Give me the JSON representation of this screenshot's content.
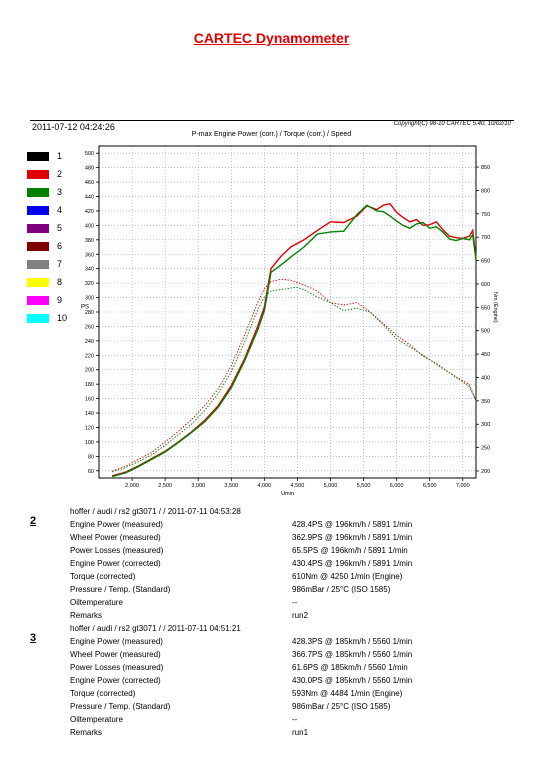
{
  "page": {
    "title": "CARTEC Dynamometer",
    "datetime": "2011-07-12 04:24:26",
    "copyright": "Copyright(C) 98-10 CARTEC 5.40, 10/02/10",
    "chart_title": "P-max Engine Power (corr.) / Torque (corr.) / Speed"
  },
  "legend": [
    {
      "label": "1",
      "color": "#000000"
    },
    {
      "label": "2",
      "color": "#e00000"
    },
    {
      "label": "3",
      "color": "#008000"
    },
    {
      "label": "4",
      "color": "#0000ee"
    },
    {
      "label": "5",
      "color": "#800080"
    },
    {
      "label": "6",
      "color": "#800000"
    },
    {
      "label": "7",
      "color": "#808080"
    },
    {
      "label": "8",
      "color": "#ffff00"
    },
    {
      "label": "9",
      "color": "#ff00ff"
    },
    {
      "label": "10",
      "color": "#00ffff"
    }
  ],
  "chart_data": {
    "type": "line",
    "title": "P-max Engine Power (corr.) / Torque (corr.) / Speed",
    "xlabel": "Umin",
    "ylabel": "PS",
    "y2label": "Nm (Engine)",
    "xlim": [
      1500,
      7200
    ],
    "ylim": [
      50,
      510
    ],
    "y2lim": [
      185,
      895
    ],
    "x_ticks": [
      "2,000",
      "2,500",
      "3,000",
      "3,500",
      "4,000",
      "4,500",
      "5,000",
      "5,500",
      "6,000",
      "6,500",
      "7,000"
    ],
    "x_tick_values": [
      2000,
      2500,
      3000,
      3500,
      4000,
      4500,
      5000,
      5500,
      6000,
      6500,
      7000
    ],
    "y_ticks": [
      60,
      80,
      100,
      120,
      140,
      160,
      180,
      200,
      220,
      240,
      260,
      280,
      300,
      320,
      340,
      360,
      380,
      400,
      420,
      440,
      460,
      480,
      500
    ],
    "y2_ticks": [
      200,
      250,
      300,
      350,
      400,
      450,
      500,
      550,
      600,
      650,
      700,
      750,
      800,
      850
    ],
    "grid": true,
    "series": [
      {
        "name": "2",
        "kind": "power",
        "axis": "left",
        "color": "#e00000",
        "style": "solid",
        "x": [
          1700,
          1900,
          2100,
          2300,
          2500,
          2700,
          2900,
          3100,
          3300,
          3500,
          3700,
          3900,
          4000,
          4100,
          4250,
          4400,
          4600,
          4800,
          5000,
          5200,
          5400,
          5550,
          5700,
          5800,
          5900,
          6000,
          6100,
          6200,
          6300,
          6400,
          6500,
          6600,
          6700,
          6800,
          6900,
          7000,
          7100,
          7150,
          7200
        ],
        "y": [
          53,
          58,
          67,
          77,
          87,
          100,
          114,
          130,
          150,
          178,
          215,
          260,
          287,
          340,
          357,
          370,
          380,
          393,
          405,
          404,
          413,
          427,
          422,
          428,
          430,
          418,
          411,
          405,
          408,
          400,
          401,
          405,
          394,
          385,
          383,
          382,
          385,
          393,
          355
        ]
      },
      {
        "name": "3",
        "kind": "power",
        "axis": "left",
        "color": "#008000",
        "style": "solid",
        "x": [
          1700,
          1900,
          2100,
          2300,
          2500,
          2700,
          2900,
          3100,
          3300,
          3500,
          3700,
          3900,
          4000,
          4100,
          4250,
          4400,
          4600,
          4800,
          5000,
          5200,
          5400,
          5550,
          5700,
          5800,
          5900,
          6000,
          6100,
          6200,
          6300,
          6400,
          6500,
          6600,
          6700,
          6800,
          6900,
          7000,
          7100,
          7150,
          7200
        ],
        "y": [
          52,
          57,
          66,
          76,
          86,
          99,
          113,
          128,
          148,
          175,
          212,
          255,
          282,
          335,
          345,
          356,
          370,
          388,
          391,
          392,
          415,
          428,
          420,
          419,
          413,
          406,
          400,
          396,
          402,
          404,
          396,
          398,
          391,
          381,
          379,
          382,
          380,
          387,
          352
        ]
      },
      {
        "name": "2",
        "kind": "torque",
        "axis": "right",
        "color": "#e00000",
        "style": "dashed",
        "x": [
          1700,
          1900,
          2100,
          2300,
          2500,
          2700,
          2900,
          3100,
          3300,
          3500,
          3700,
          3900,
          4000,
          4100,
          4250,
          4400,
          4600,
          4800,
          5000,
          5200,
          5400,
          5600,
          5800,
          6000,
          6200,
          6400,
          6600,
          6800,
          7000,
          7100,
          7200
        ],
        "y": [
          200,
          210,
          225,
          240,
          262,
          285,
          310,
          340,
          375,
          425,
          490,
          560,
          590,
          605,
          610,
          608,
          598,
          585,
          560,
          555,
          560,
          540,
          515,
          490,
          470,
          445,
          430,
          410,
          393,
          385,
          350
        ]
      },
      {
        "name": "3",
        "kind": "torque",
        "axis": "right",
        "color": "#008000",
        "style": "dashed",
        "x": [
          1700,
          1900,
          2100,
          2300,
          2500,
          2700,
          2900,
          3100,
          3300,
          3500,
          3700,
          3900,
          4000,
          4100,
          4250,
          4484,
          4600,
          4800,
          5000,
          5200,
          5400,
          5600,
          5800,
          6000,
          6200,
          6400,
          6600,
          6800,
          7000,
          7100,
          7200
        ],
        "y": [
          198,
          207,
          220,
          235,
          255,
          278,
          300,
          330,
          365,
          412,
          475,
          545,
          572,
          585,
          588,
          593,
          588,
          572,
          560,
          543,
          548,
          540,
          512,
          483,
          465,
          448,
          428,
          410,
          390,
          380,
          350
        ]
      }
    ]
  },
  "runs": [
    {
      "number": "2",
      "header": "hoffer / audi / rs2 gt3071 /  / 2011-07-11 04:53:28",
      "rows": [
        {
          "label": "Engine Power (measured)",
          "value": "428.4PS @ 196km/h / 5891 1/min"
        },
        {
          "label": "Wheel Power (measured)",
          "value": "362.9PS @ 196km/h / 5891 1/min"
        },
        {
          "label": "Power Losses (measured)",
          "value": "65.5PS @ 196km/h / 5891 1/min"
        },
        {
          "label": "Engine Power (corrected)",
          "value": "430.4PS @ 196km/h / 5891 1/min"
        },
        {
          "label": "Torque (corrected)",
          "value": "610Nm @ 4250 1/min (Engine)"
        },
        {
          "label": "Pressure / Temp. (Standard)",
          "value": "986mBar / 25°C    (ISO 1585)"
        },
        {
          "label": "Oiltemperature",
          "value": "--"
        },
        {
          "label": "Remarks",
          "value": "run2"
        }
      ]
    },
    {
      "number": "3",
      "header": "hoffer / audi / rs2 gt3071 /  / 2011-07-11 04:51:21",
      "rows": [
        {
          "label": "Engine Power (measured)",
          "value": "428.3PS @ 185km/h / 5560 1/min"
        },
        {
          "label": "Wheel Power (measured)",
          "value": "366.7PS @ 185km/h / 5560 1/min"
        },
        {
          "label": "Power Losses (measured)",
          "value": "61.6PS @ 185km/h / 5560 1/min"
        },
        {
          "label": "Engine Power (corrected)",
          "value": "430.0PS @ 185km/h / 5560 1/min"
        },
        {
          "label": "Torque (corrected)",
          "value": "593Nm @ 4484 1/min (Engine)"
        },
        {
          "label": "Pressure / Temp. (Standard)",
          "value": "986mBar / 25°C    (ISO 1585)"
        },
        {
          "label": "Oiltemperature",
          "value": "--"
        },
        {
          "label": "Remarks",
          "value": "run1"
        }
      ]
    }
  ]
}
